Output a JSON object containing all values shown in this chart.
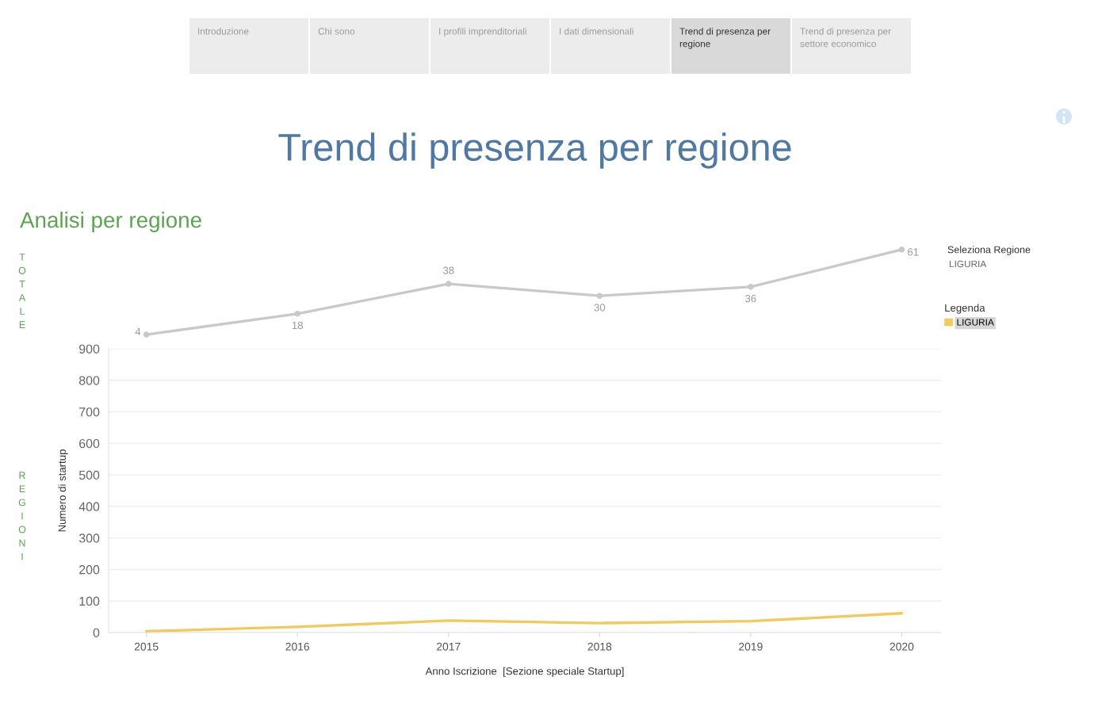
{
  "chart_data": [
    {
      "type": "other",
      "title": "Trend di presenza per regione",
      "subtitle": "Analisi per regione",
      "annotations": [
        "Introduzione",
        "Chi sono",
        "I profili imprenditoriali",
        "I dati dimensionali",
        "Trend di presenza per regione",
        "Trend di presenza per settore economico"
      ]
    },
    {
      "type": "line",
      "title": "TOTALE",
      "x": [
        2015,
        2016,
        2017,
        2018,
        2019,
        2020
      ],
      "series": [
        {
          "color": "#c9c9c9",
          "values": [
            4,
            18,
            38,
            30,
            36,
            61
          ]
        }
      ],
      "data_labels": true,
      "marker": "circle",
      "line_style": "solid",
      "tick_labels": false
    },
    {
      "type": "line",
      "title": "REGIONI",
      "x": [
        2015,
        2016,
        2017,
        2018,
        2019,
        2020
      ],
      "xlim": [
        2014.75,
        2020.26
      ],
      "xticks": [
        2015,
        2016,
        2017,
        2018,
        2019,
        2020
      ],
      "ylim": [
        0,
        900
      ],
      "yticks": [
        0,
        100,
        200,
        300,
        400,
        500,
        600,
        700,
        800,
        900
      ],
      "xlabel": "Anno Iscrizione  [Sezione speciale Startup]",
      "ylabel": "Numero di startup",
      "series": [
        {
          "name": "LIGURIA",
          "color": "#f1ca5b",
          "values": [
            4,
            18,
            38,
            30,
            36,
            61
          ]
        }
      ],
      "legend_title": "Legenda",
      "legend": "top right",
      "grid": "y",
      "line_style": "solid",
      "annotations": [
        "Seleziona Regione",
        "LIGURIA"
      ]
    }
  ]
}
